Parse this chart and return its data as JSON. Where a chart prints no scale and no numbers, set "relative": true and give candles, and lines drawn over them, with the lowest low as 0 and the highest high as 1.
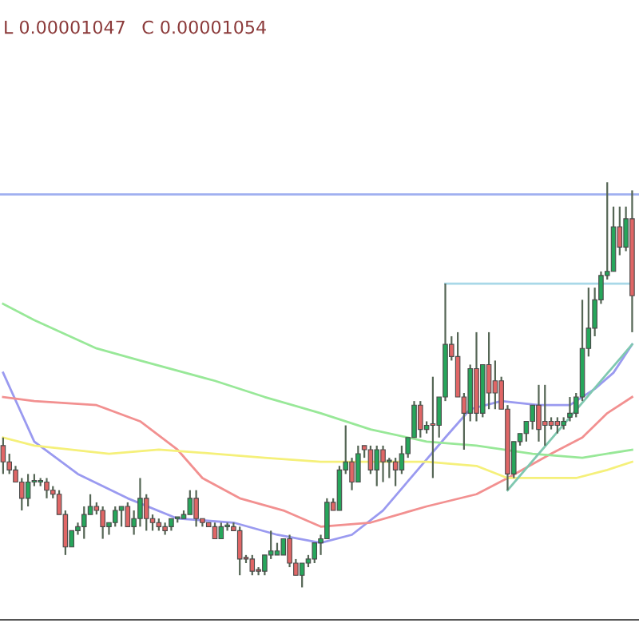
{
  "chart_data": {
    "type": "candlestick",
    "relative": true,
    "annotations": [
      "L 0.00001047",
      "C 0.00001054"
    ],
    "categories": [
      null,
      null,
      null,
      null,
      null,
      null,
      null,
      null,
      null,
      null,
      null,
      null,
      null,
      null,
      null,
      null,
      null,
      null,
      null,
      null,
      null,
      null,
      null,
      null,
      null,
      null,
      null,
      null,
      null,
      null,
      null,
      null,
      null,
      null,
      null,
      null,
      null,
      null,
      null,
      null,
      null,
      null,
      null,
      null,
      null,
      null,
      null,
      null,
      null,
      null,
      null,
      null,
      null,
      null,
      null,
      null,
      null,
      null,
      null,
      null,
      null,
      null,
      null,
      null,
      null,
      null,
      null,
      null,
      null,
      null,
      null,
      null,
      null,
      null,
      null,
      null,
      null,
      null,
      null,
      null,
      null,
      null,
      null,
      null,
      null,
      null,
      null,
      null,
      null,
      null,
      null,
      null,
      null,
      null,
      null,
      null,
      null,
      null,
      null,
      null,
      null,
      null
    ],
    "ohlc": [
      [
        0.35,
        0.37,
        0.28,
        0.31
      ],
      [
        0.31,
        0.33,
        0.28,
        0.29
      ],
      [
        0.29,
        0.3,
        0.26,
        0.26
      ],
      [
        0.26,
        0.27,
        0.19,
        0.22
      ],
      [
        0.22,
        0.28,
        0.2,
        0.26
      ],
      [
        0.26,
        0.28,
        0.25,
        0.26
      ],
      [
        0.26,
        0.27,
        0.25,
        0.26
      ],
      [
        0.26,
        0.27,
        0.22,
        0.24
      ],
      [
        0.24,
        0.25,
        0.22,
        0.23
      ],
      [
        0.23,
        0.24,
        0.18,
        0.18
      ],
      [
        0.18,
        0.19,
        0.08,
        0.1
      ],
      [
        0.1,
        0.14,
        0.1,
        0.14
      ],
      [
        0.14,
        0.16,
        0.13,
        0.15
      ],
      [
        0.15,
        0.2,
        0.12,
        0.18
      ],
      [
        0.18,
        0.23,
        0.18,
        0.2
      ],
      [
        0.2,
        0.21,
        0.18,
        0.19
      ],
      [
        0.19,
        0.2,
        0.12,
        0.15
      ],
      [
        0.15,
        0.16,
        0.13,
        0.16
      ],
      [
        0.16,
        0.2,
        0.15,
        0.19
      ],
      [
        0.19,
        0.2,
        0.15,
        0.2
      ],
      [
        0.2,
        0.21,
        0.15,
        0.15
      ],
      [
        0.15,
        0.19,
        0.13,
        0.17
      ],
      [
        0.17,
        0.27,
        0.15,
        0.22
      ],
      [
        0.22,
        0.23,
        0.14,
        0.17
      ],
      [
        0.17,
        0.18,
        0.14,
        0.16
      ],
      [
        0.16,
        0.17,
        0.14,
        0.15
      ],
      [
        0.15,
        0.16,
        0.13,
        0.14
      ],
      [
        0.15,
        0.17,
        0.14,
        0.17
      ],
      [
        0.17,
        0.17,
        0.16,
        0.17
      ],
      [
        0.17,
        0.19,
        0.17,
        0.18
      ],
      [
        0.18,
        0.24,
        0.18,
        0.22
      ],
      [
        0.22,
        0.24,
        0.15,
        0.17
      ],
      [
        0.17,
        0.17,
        0.15,
        0.16
      ],
      [
        0.16,
        0.16,
        0.15,
        0.15
      ],
      [
        0.15,
        0.16,
        0.12,
        0.12
      ],
      [
        0.12,
        0.16,
        0.12,
        0.15
      ],
      [
        0.15,
        0.16,
        0.14,
        0.15
      ],
      [
        0.15,
        0.16,
        0.14,
        0.14
      ],
      [
        0.14,
        0.15,
        0.03,
        0.07
      ],
      [
        0.07,
        0.08,
        0.06,
        0.07
      ],
      [
        0.07,
        0.08,
        0.03,
        0.04
      ],
      [
        0.04,
        0.05,
        0.03,
        0.04
      ],
      [
        0.04,
        0.08,
        0.03,
        0.08
      ],
      [
        0.08,
        0.14,
        0.07,
        0.09
      ],
      [
        0.08,
        0.11,
        0.08,
        0.09
      ],
      [
        0.08,
        0.12,
        0.08,
        0.12
      ],
      [
        0.12,
        0.13,
        0.05,
        0.06
      ],
      [
        0.06,
        0.07,
        0.03,
        0.03
      ],
      [
        0.03,
        0.06,
        0.0,
        0.06
      ],
      [
        0.06,
        0.08,
        0.05,
        0.07
      ],
      [
        0.07,
        0.11,
        0.06,
        0.11
      ],
      [
        0.11,
        0.13,
        0.08,
        0.12
      ],
      [
        0.12,
        0.22,
        0.12,
        0.21
      ],
      [
        0.21,
        0.22,
        0.19,
        0.19
      ],
      [
        0.19,
        0.3,
        0.19,
        0.29
      ],
      [
        0.29,
        0.4,
        0.28,
        0.31
      ],
      [
        0.31,
        0.32,
        0.24,
        0.26
      ],
      [
        0.26,
        0.35,
        0.26,
        0.33
      ],
      [
        0.35,
        0.35,
        0.32,
        0.34
      ],
      [
        0.34,
        0.35,
        0.28,
        0.29
      ],
      [
        0.29,
        0.35,
        0.25,
        0.34
      ],
      [
        0.34,
        0.35,
        0.26,
        0.31
      ],
      [
        0.31,
        0.32,
        0.27,
        0.31
      ],
      [
        0.31,
        0.32,
        0.25,
        0.29
      ],
      [
        0.29,
        0.35,
        0.28,
        0.33
      ],
      [
        0.33,
        0.37,
        0.32,
        0.37
      ],
      [
        0.37,
        0.46,
        0.37,
        0.45
      ],
      [
        0.45,
        0.46,
        0.37,
        0.39
      ],
      [
        0.39,
        0.41,
        0.38,
        0.4
      ],
      [
        0.4,
        0.52,
        0.27,
        0.4
      ],
      [
        0.4,
        0.47,
        0.37,
        0.47
      ],
      [
        0.47,
        0.75,
        0.46,
        0.6
      ],
      [
        0.6,
        0.62,
        0.56,
        0.57
      ],
      [
        0.57,
        0.63,
        0.47,
        0.47
      ],
      [
        0.47,
        0.48,
        0.34,
        0.43
      ],
      [
        0.43,
        0.55,
        0.41,
        0.54
      ],
      [
        0.54,
        0.63,
        0.41,
        0.43
      ],
      [
        0.43,
        0.55,
        0.42,
        0.55
      ],
      [
        0.55,
        0.63,
        0.44,
        0.48
      ],
      [
        0.51,
        0.56,
        0.44,
        0.48
      ],
      [
        0.51,
        0.52,
        0.44,
        0.44
      ],
      [
        0.44,
        0.45,
        0.24,
        0.28
      ],
      [
        0.28,
        0.36,
        0.27,
        0.36
      ],
      [
        0.36,
        0.38,
        0.35,
        0.38
      ],
      [
        0.38,
        0.41,
        0.36,
        0.41
      ],
      [
        0.41,
        0.45,
        0.39,
        0.45
      ],
      [
        0.45,
        0.5,
        0.36,
        0.39
      ],
      [
        0.41,
        0.5,
        0.35,
        0.4
      ],
      [
        0.41,
        0.42,
        0.39,
        0.4
      ],
      [
        0.41,
        0.42,
        0.38,
        0.4
      ],
      [
        0.4,
        0.42,
        0.39,
        0.41
      ],
      [
        0.42,
        0.47,
        0.41,
        0.43
      ],
      [
        0.43,
        0.48,
        0.42,
        0.47
      ],
      [
        0.47,
        0.71,
        0.46,
        0.59
      ],
      [
        0.59,
        0.74,
        0.57,
        0.64
      ],
      [
        0.64,
        0.74,
        0.62,
        0.71
      ],
      [
        0.71,
        0.78,
        0.7,
        0.77
      ],
      [
        0.77,
        1.0,
        0.76,
        0.78
      ],
      [
        0.78,
        0.94,
        0.78,
        0.89
      ],
      [
        0.89,
        0.94,
        0.82,
        0.84
      ],
      [
        0.84,
        0.94,
        0.83,
        0.91
      ],
      [
        0.91,
        0.98,
        0.63,
        0.72
      ]
    ],
    "colors": [
      "#e06666",
      "#e06666",
      "#e06666",
      "#e06666",
      "#26a65b",
      "#26a65b",
      "#26a65b",
      "#e06666",
      "#e06666",
      "#e06666",
      "#e06666",
      "#26a65b",
      "#26a65b",
      "#26a65b",
      "#26a65b",
      "#e06666",
      "#e06666",
      "#26a65b",
      "#26a65b",
      "#26a65b",
      "#e06666",
      "#26a65b",
      "#26a65b",
      "#e06666",
      "#e06666",
      "#e06666",
      "#e06666",
      "#26a65b",
      "#26a65b",
      "#26a65b",
      "#26a65b",
      "#e06666",
      "#e06666",
      "#e06666",
      "#e06666",
      "#26a65b",
      "#26a65b",
      "#e06666",
      "#e06666",
      "#e06666",
      "#e06666",
      "#e06666",
      "#26a65b",
      "#26a65b",
      "#26a65b",
      "#26a65b",
      "#e06666",
      "#e06666",
      "#26a65b",
      "#26a65b",
      "#26a65b",
      "#26a65b",
      "#26a65b",
      "#e06666",
      "#26a65b",
      "#26a65b",
      "#e06666",
      "#26a65b",
      "#e06666",
      "#e06666",
      "#26a65b",
      "#e06666",
      "#26a65b",
      "#e06666",
      "#26a65b",
      "#26a65b",
      "#26a65b",
      "#e06666",
      "#26a65b",
      "#e06666",
      "#26a65b",
      "#26a65b",
      "#e06666",
      "#e06666",
      "#e06666",
      "#26a65b",
      "#e06666",
      "#26a65b",
      "#e06666",
      "#e06666",
      "#e06666",
      "#e06666",
      "#26a65b",
      "#26a65b",
      "#26a65b",
      "#26a65b",
      "#e06666",
      "#e06666",
      "#e06666",
      "#e06666",
      "#26a65b",
      "#26a65b",
      "#26a65b",
      "#26a65b",
      "#26a65b",
      "#26a65b",
      "#26a65b",
      "#26a65b",
      "#26a65b",
      "#e06666",
      "#26a65b",
      "#e06666"
    ],
    "series": [
      {
        "type": "line",
        "color": "#9a9af0",
        "values": [
          0.53,
          null,
          null,
          null,
          null,
          0.36,
          null,
          null,
          null,
          null,
          null,
          null,
          0.28,
          null,
          null,
          null,
          null,
          null,
          null,
          null,
          0.22,
          null,
          null,
          null,
          null,
          null,
          null,
          null,
          0.17,
          null,
          null,
          null,
          null,
          null,
          null,
          null,
          null,
          0.16,
          null,
          null,
          null,
          null,
          null,
          null,
          0.13,
          null,
          null,
          null,
          null,
          null,
          null,
          0.11,
          null,
          null,
          null,
          null,
          0.13,
          null,
          null,
          null,
          null,
          0.19,
          null,
          null,
          null,
          null,
          0.28,
          null,
          null,
          null,
          null,
          0.37,
          null,
          null,
          null,
          0.44,
          null,
          null,
          null,
          null,
          0.46,
          null,
          null,
          null,
          null,
          null,
          0.45,
          null,
          null,
          null,
          null,
          0.45,
          null,
          null,
          null,
          0.49,
          null,
          null,
          0.53,
          null,
          null,
          0.6
        ]
      },
      {
        "type": "line",
        "color": "#f29090",
        "values": [
          0.47,
          null,
          null,
          null,
          null,
          0.46,
          null,
          null,
          null,
          null,
          null,
          null,
          null,
          null,
          null,
          0.45,
          null,
          null,
          null,
          null,
          null,
          null,
          0.41,
          null,
          null,
          null,
          null,
          null,
          0.34,
          null,
          null,
          null,
          0.27,
          null,
          null,
          null,
          null,
          null,
          0.22,
          null,
          null,
          null,
          null,
          null,
          null,
          0.19,
          null,
          null,
          null,
          null,
          null,
          0.15,
          null,
          null,
          null,
          null,
          null,
          null,
          null,
          0.16,
          null,
          null,
          null,
          null,
          null,
          null,
          null,
          null,
          0.2,
          null,
          null,
          null,
          null,
          null,
          null,
          null,
          0.23,
          null,
          null,
          null,
          null,
          0.27,
          null,
          null,
          null,
          null,
          null,
          null,
          0.33,
          null,
          null,
          null,
          null,
          0.37,
          null,
          null,
          null,
          0.43,
          null,
          null,
          null,
          0.47
        ]
      },
      {
        "type": "line",
        "color": "#f5f07a",
        "values": [
          0.37,
          null,
          null,
          null,
          null,
          0.35,
          null,
          null,
          null,
          null,
          null,
          null,
          null,
          null,
          null,
          null,
          null,
          0.33,
          null,
          null,
          null,
          null,
          null,
          null,
          null,
          0.34,
          null,
          null,
          null,
          null,
          null,
          null,
          null,
          null,
          0.33,
          null,
          null,
          null,
          null,
          null,
          null,
          null,
          0.32,
          null,
          null,
          null,
          null,
          null,
          null,
          null,
          null,
          0.31,
          null,
          null,
          null,
          null,
          null,
          null,
          null,
          0.31,
          null,
          null,
          null,
          null,
          null,
          null,
          null,
          null,
          0.31,
          null,
          null,
          null,
          null,
          null,
          null,
          null,
          0.3,
          null,
          null,
          null,
          null,
          0.27,
          null,
          null,
          null,
          null,
          0.27,
          null,
          null,
          null,
          null,
          null,
          0.27,
          null,
          null,
          null,
          null,
          0.29,
          null,
          null,
          null,
          0.31
        ]
      },
      {
        "type": "line",
        "color": "#98e898",
        "values": [
          0.7,
          null,
          null,
          null,
          null,
          0.66,
          null,
          null,
          null,
          null,
          null,
          null,
          null,
          null,
          null,
          0.59,
          null,
          null,
          null,
          null,
          null,
          null,
          0.56,
          null,
          null,
          null,
          null,
          null,
          null,
          null,
          null,
          null,
          null,
          null,
          0.51,
          null,
          null,
          null,
          null,
          null,
          null,
          null,
          0.47,
          null,
          null,
          null,
          null,
          null,
          null,
          null,
          null,
          0.43,
          null,
          null,
          null,
          null,
          null,
          null,
          null,
          0.39,
          null,
          null,
          null,
          null,
          null,
          null,
          null,
          null,
          0.36,
          null,
          null,
          null,
          null,
          null,
          null,
          null,
          0.35,
          null,
          null,
          null,
          null,
          null,
          null,
          null,
          null,
          0.33,
          null,
          null,
          null,
          null,
          null,
          null,
          null,
          0.32,
          null,
          null,
          null,
          null,
          null,
          null,
          null,
          0.34
        ]
      },
      {
        "type": "line",
        "color": "#7fc8b0",
        "values": [
          null,
          null,
          null,
          null,
          null,
          null,
          null,
          null,
          null,
          null,
          null,
          null,
          null,
          null,
          null,
          null,
          null,
          null,
          null,
          null,
          null,
          null,
          null,
          null,
          null,
          null,
          null,
          null,
          null,
          null,
          null,
          null,
          null,
          null,
          null,
          null,
          null,
          null,
          null,
          null,
          null,
          null,
          null,
          null,
          null,
          null,
          null,
          null,
          null,
          null,
          null,
          null,
          null,
          null,
          null,
          null,
          null,
          null,
          null,
          null,
          null,
          null,
          null,
          null,
          null,
          null,
          null,
          null,
          null,
          null,
          null,
          null,
          null,
          null,
          null,
          null,
          null,
          null,
          null,
          null,
          null,
          0.24,
          null,
          null,
          null,
          null,
          null,
          null,
          null,
          null,
          null,
          null,
          null,
          null,
          null,
          null,
          null,
          null,
          null,
          null,
          null,
          0.6
        ]
      },
      {
        "type": "line",
        "color": "#a8d8e8",
        "values": [
          null,
          null,
          null,
          null,
          null,
          null,
          null,
          null,
          null,
          null,
          null,
          null,
          null,
          null,
          null,
          null,
          null,
          null,
          null,
          null,
          null,
          null,
          null,
          null,
          null,
          null,
          null,
          null,
          null,
          null,
          null,
          null,
          null,
          null,
          null,
          null,
          null,
          null,
          null,
          null,
          null,
          null,
          null,
          null,
          null,
          null,
          null,
          null,
          null,
          null,
          null,
          null,
          null,
          null,
          null,
          null,
          null,
          null,
          null,
          null,
          null,
          null,
          null,
          null,
          null,
          null,
          null,
          null,
          null,
          null,
          null,
          0.75,
          null,
          null,
          null,
          null,
          null,
          null,
          null,
          null,
          null,
          null,
          null,
          null,
          null,
          null,
          null,
          null,
          null,
          null,
          null,
          null,
          null,
          null,
          null,
          null,
          null,
          null,
          null,
          null,
          null,
          0.75
        ]
      }
    ],
    "ref_lines": [
      {
        "axis": "y",
        "value": 0.97,
        "color": "#a0b0f0"
      }
    ]
  }
}
